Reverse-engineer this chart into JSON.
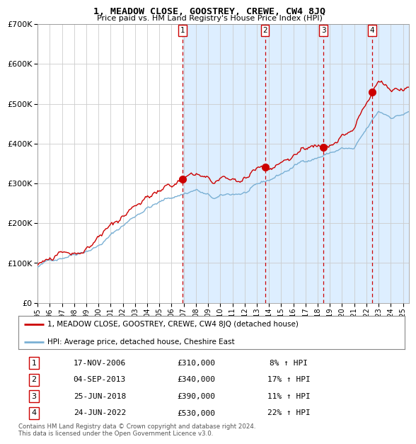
{
  "title": "1, MEADOW CLOSE, GOOSTREY, CREWE, CW4 8JQ",
  "subtitle": "Price paid vs. HM Land Registry's House Price Index (HPI)",
  "red_label": "1, MEADOW CLOSE, GOOSTREY, CREWE, CW4 8JQ (detached house)",
  "blue_label": "HPI: Average price, detached house, Cheshire East",
  "transactions": [
    {
      "num": 1,
      "date": "17-NOV-2006",
      "price": 310000,
      "pct": "8%",
      "x": 2006.88
    },
    {
      "num": 2,
      "date": "04-SEP-2013",
      "price": 340000,
      "pct": "17%",
      "x": 2013.67
    },
    {
      "num": 3,
      "date": "25-JUN-2018",
      "price": 390000,
      "pct": "11%",
      "x": 2018.48
    },
    {
      "num": 4,
      "date": "24-JUN-2022",
      "price": 530000,
      "pct": "22%",
      "x": 2022.48
    }
  ],
  "footer": "Contains HM Land Registry data © Crown copyright and database right 2024.\nThis data is licensed under the Open Government Licence v3.0.",
  "ylim": [
    0,
    700000
  ],
  "xlim": [
    1995.0,
    2025.5
  ],
  "bg_color": "#ddeeff",
  "plot_bg": "#ffffff",
  "grid_color": "#cccccc",
  "red_color": "#cc0000",
  "blue_color": "#7ab0d4",
  "shade_start": 2006.88,
  "shade_end": 2025.5
}
